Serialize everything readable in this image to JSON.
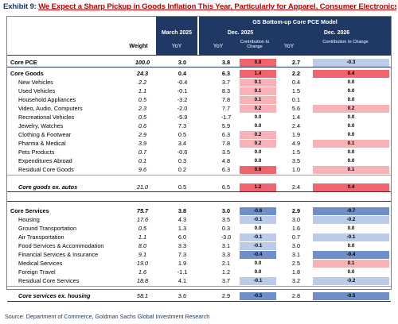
{
  "title": {
    "exhibit": "Exhibit 9:",
    "text": "We Expect a Sharp Pickup in Goods Inflation This Year, Particularly for Apparel, Consumer Electronics, and Autos"
  },
  "header": {
    "model_title": "GS Bottom-up Core PCE Model",
    "march_2025": "March 2025",
    "dec_2025": "Dec. 2025",
    "dec_2026": "Dec. 2026",
    "weight": "Weight",
    "yoy": "YoY",
    "contribution": "Contribution to Change"
  },
  "colors": {
    "header_navy": "#1f3864",
    "red_strong": "#f0646e",
    "red_light": "#f7b3b8",
    "blue_strong": "#6f8fc9",
    "blue_light": "#bccbe8"
  },
  "rows": [
    {
      "label": "Core PCE",
      "weight": "100.0",
      "m25": "3.0",
      "d25": "3.8",
      "c25": "0.8",
      "d26": "2.7",
      "c26": "-0.3",
      "style": "bold"
    },
    {
      "label": "Core Goods",
      "weight": "24.3",
      "m25": "0.4",
      "d25": "6.3",
      "c25": "1.4",
      "d26": "2.2",
      "c26": "0.4",
      "style": "bold"
    },
    {
      "label": "New Vehicles",
      "weight": "2.2",
      "m25": "-0.4",
      "d25": "3.7",
      "c25": "0.1",
      "d26": "0.4",
      "c26": "0.0",
      "style": "ind"
    },
    {
      "label": "Used Vehicles",
      "weight": "1.1",
      "m25": "-0.1",
      "d25": "8.3",
      "c25": "0.1",
      "d26": "1.5",
      "c26": "0.0",
      "style": "ind"
    },
    {
      "label": "Household Appliances",
      "weight": "0.5",
      "m25": "-3.2",
      "d25": "7.8",
      "c25": "0.1",
      "d26": "0.1",
      "c26": "0.0",
      "style": "ind"
    },
    {
      "label": "Video, Audio, Computers",
      "weight": "2.3",
      "m25": "-2.0",
      "d25": "7.7",
      "c25": "0.2",
      "d26": "5.6",
      "c26": "0.2",
      "style": "ind"
    },
    {
      "label": "Recreational Vehicles",
      "weight": "0.5",
      "m25": "-5.9",
      "d25": "-1.7",
      "c25": "0.0",
      "d26": "1.4",
      "c26": "0.0",
      "style": "ind"
    },
    {
      "label": "Jewelry, Watches",
      "weight": "0.6",
      "m25": "7.3",
      "d25": "5.9",
      "c25": "0.0",
      "d26": "2.4",
      "c26": "0.0",
      "style": "ind"
    },
    {
      "label": "Clothing & Footwear",
      "weight": "2.9",
      "m25": "0.5",
      "d25": "6.3",
      "c25": "0.2",
      "d26": "1.9",
      "c26": "0.0",
      "style": "ind"
    },
    {
      "label": "Pharma & Medical",
      "weight": "3.9",
      "m25": "3.4",
      "d25": "7.8",
      "c25": "0.2",
      "d26": "4.9",
      "c26": "0.1",
      "style": "ind"
    },
    {
      "label": "Pets Products",
      "weight": "0.7",
      "m25": "-0.6",
      "d25": "3.5",
      "c25": "0.0",
      "d26": "1.5",
      "c26": "0.0",
      "style": "ind"
    },
    {
      "label": "Expenditures Abroad",
      "weight": "0.1",
      "m25": "0.3",
      "d25": "4.8",
      "c25": "0.0",
      "d26": "3.5",
      "c26": "0.0",
      "style": "ind"
    },
    {
      "label": "Residual Core Goods",
      "weight": "9.6",
      "m25": "0.2",
      "d25": "6.3",
      "c25": "0.6",
      "d26": "1.0",
      "c26": "0.1",
      "style": "ind"
    },
    {
      "label": "Core goods ex. autos",
      "weight": "21.0",
      "m25": "0.5",
      "d25": "6.5",
      "c25": "1.2",
      "d26": "2.4",
      "c26": "0.4",
      "style": "ital"
    },
    {
      "label": "Core Services",
      "weight": "75.7",
      "m25": "3.8",
      "d25": "3.0",
      "c25": "-0.6",
      "d26": "2.9",
      "c26": "-0.7",
      "style": "bold"
    },
    {
      "label": "Housing",
      "weight": "17.6",
      "m25": "4.3",
      "d25": "3.5",
      "c25": "-0.1",
      "d26": "3.0",
      "c26": "-0.2",
      "style": "ind"
    },
    {
      "label": "Ground Transportation",
      "weight": "0.5",
      "m25": "1.3",
      "d25": "0.3",
      "c25": "0.0",
      "d26": "1.6",
      "c26": "0.0",
      "style": "ind"
    },
    {
      "label": "Air Transportation",
      "weight": "1.1",
      "m25": "6.0",
      "d25": "-3.0",
      "c25": "-0.1",
      "d26": "0.7",
      "c26": "-0.1",
      "style": "ind"
    },
    {
      "label": "Food Services & Accommodation",
      "weight": "8.0",
      "m25": "3.3",
      "d25": "3.1",
      "c25": "-0.1",
      "d26": "3.0",
      "c26": "0.0",
      "style": "ind"
    },
    {
      "label": "Financial Services & Insurance",
      "weight": "9.1",
      "m25": "7.3",
      "d25": "3.3",
      "c25": "-0.4",
      "d26": "3.1",
      "c26": "-0.4",
      "style": "ind"
    },
    {
      "label": "Medical Services",
      "weight": "19.0",
      "m25": "1.9",
      "d25": "2.1",
      "c25": "0.0",
      "d26": "2.5",
      "c26": "0.1",
      "style": "ind"
    },
    {
      "label": "Foreign Travel",
      "weight": "1.6",
      "m25": "-1.1",
      "d25": "1.2",
      "c25": "0.0",
      "d26": "1.8",
      "c26": "0.0",
      "style": "ind"
    },
    {
      "label": "Residual Core Services",
      "weight": "18.8",
      "m25": "4.1",
      "d25": "3.7",
      "c25": "-0.1",
      "d26": "3.2",
      "c26": "-0.2",
      "style": "ind"
    },
    {
      "label": "Core services ex. housing",
      "weight": "58.1",
      "m25": "3.6",
      "d25": "2.9",
      "c25": "-0.5",
      "d26": "2.8",
      "c26": "-0.5",
      "style": "ital"
    }
  ],
  "source": "Source: Department of Commerce, Goldman Sachs Global Investment Research"
}
